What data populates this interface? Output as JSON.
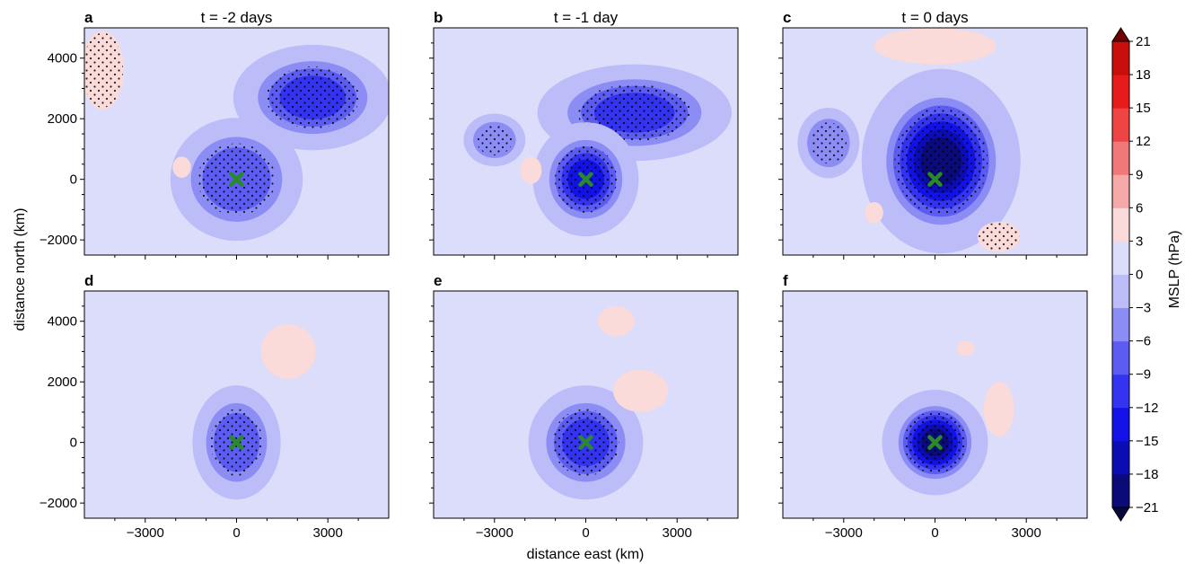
{
  "chart_data": {
    "type": "heatmap",
    "variable_label": "MSLP (hPa)",
    "xlabel": "distance east (km)",
    "ylabel": "distance north (km)",
    "xlim": [
      -5000,
      5000
    ],
    "ylim": [
      -2500,
      5000
    ],
    "x_ticks": [
      -3000,
      0,
      3000
    ],
    "x_tick_labels": [
      "−3000",
      "0",
      "3000"
    ],
    "y_ticks": [
      -2000,
      0,
      2000,
      4000
    ],
    "y_tick_labels": [
      "−2000",
      "0",
      "2000",
      "4000"
    ],
    "colorbar": {
      "levels": [
        -21,
        -18,
        -15,
        -12,
        -9,
        -6,
        -3,
        0,
        3,
        6,
        9,
        12,
        15,
        18,
        21
      ],
      "tick_labels": [
        "−21",
        "−18",
        "−15",
        "−12",
        "−9",
        "−6",
        "−3",
        "0",
        "3",
        "6",
        "9",
        "12",
        "15",
        "18",
        "21"
      ],
      "colors": [
        "#08083c",
        "#0a0a78",
        "#0c0cb4",
        "#1212e6",
        "#3333f0",
        "#5c5cf2",
        "#8c8cf5",
        "#bcbcf8",
        "#dcdcfb",
        "#fbdada",
        "#f5a9a9",
        "#f07878",
        "#ee4444",
        "#e61a1a",
        "#c80d0d",
        "#9a0606",
        "#6e0202"
      ]
    },
    "marker": {
      "x": 0,
      "y": 0,
      "symbol": "X",
      "color": "#2a8a2a"
    },
    "panels": [
      {
        "letter": "a",
        "title": "t = -2 days",
        "features": [
          {
            "kind": "low",
            "x": 2500,
            "y": 2700,
            "rx": 1800,
            "ry": 1200,
            "min": -12,
            "stipple": true
          },
          {
            "kind": "low",
            "x": 0,
            "y": 0,
            "rx": 1500,
            "ry": 1400,
            "min": -8,
            "stipple": true
          },
          {
            "kind": "high",
            "x": -4400,
            "y": 3600,
            "rx": 700,
            "ry": 1300,
            "max": 4,
            "stipple": true
          },
          {
            "kind": "high",
            "x": -1800,
            "y": 400,
            "rx": 300,
            "ry": 350,
            "max": 4,
            "stipple": false
          }
        ]
      },
      {
        "letter": "b",
        "title": "t = -1 day",
        "features": [
          {
            "kind": "low",
            "x": 1600,
            "y": 2200,
            "rx": 2200,
            "ry": 1100,
            "min": -12,
            "stipple": true
          },
          {
            "kind": "low",
            "x": 0,
            "y": 0,
            "rx": 1200,
            "ry": 1300,
            "min": -14,
            "stipple": true
          },
          {
            "kind": "low",
            "x": -3000,
            "y": 1300,
            "rx": 700,
            "ry": 600,
            "min": -5,
            "stipple": true
          },
          {
            "kind": "high",
            "x": -1800,
            "y": 300,
            "rx": 350,
            "ry": 450,
            "max": 4,
            "stipple": false
          }
        ]
      },
      {
        "letter": "c",
        "title": "t = 0 days",
        "features": [
          {
            "kind": "low",
            "x": 200,
            "y": 600,
            "rx": 1800,
            "ry": 2100,
            "min": -20,
            "stipple": true
          },
          {
            "kind": "low",
            "x": -3500,
            "y": 1200,
            "rx": 700,
            "ry": 800,
            "min": -5,
            "stipple": true
          },
          {
            "kind": "high",
            "x": 0,
            "y": 4400,
            "rx": 2000,
            "ry": 600,
            "max": 4,
            "stipple": false
          },
          {
            "kind": "high",
            "x": 2100,
            "y": -1900,
            "rx": 700,
            "ry": 500,
            "max": 4,
            "stipple": true
          },
          {
            "kind": "high",
            "x": -2000,
            "y": -1100,
            "rx": 300,
            "ry": 350,
            "max": 4,
            "stipple": false
          }
        ]
      },
      {
        "letter": "d",
        "title": "",
        "features": [
          {
            "kind": "low",
            "x": 0,
            "y": 0,
            "rx": 1000,
            "ry": 1300,
            "min": -9,
            "stipple": true
          },
          {
            "kind": "high",
            "x": 1700,
            "y": 3000,
            "rx": 900,
            "ry": 900,
            "max": 4,
            "stipple": false
          }
        ]
      },
      {
        "letter": "e",
        "title": "",
        "features": [
          {
            "kind": "low",
            "x": 0,
            "y": 0,
            "rx": 1300,
            "ry": 1300,
            "min": -12,
            "stipple": true
          },
          {
            "kind": "high",
            "x": 1800,
            "y": 1700,
            "rx": 900,
            "ry": 700,
            "max": 4,
            "stipple": false
          },
          {
            "kind": "high",
            "x": 1000,
            "y": 4000,
            "rx": 600,
            "ry": 500,
            "max": 4,
            "stipple": false
          }
        ]
      },
      {
        "letter": "f",
        "title": "",
        "features": [
          {
            "kind": "low",
            "x": 0,
            "y": 0,
            "rx": 1200,
            "ry": 1200,
            "min": -19,
            "stipple": true
          },
          {
            "kind": "high",
            "x": 2100,
            "y": 1100,
            "rx": 500,
            "ry": 900,
            "max": 4,
            "stipple": false
          },
          {
            "kind": "high",
            "x": 1000,
            "y": 3100,
            "rx": 300,
            "ry": 250,
            "max": 4,
            "stipple": false
          }
        ]
      }
    ]
  }
}
